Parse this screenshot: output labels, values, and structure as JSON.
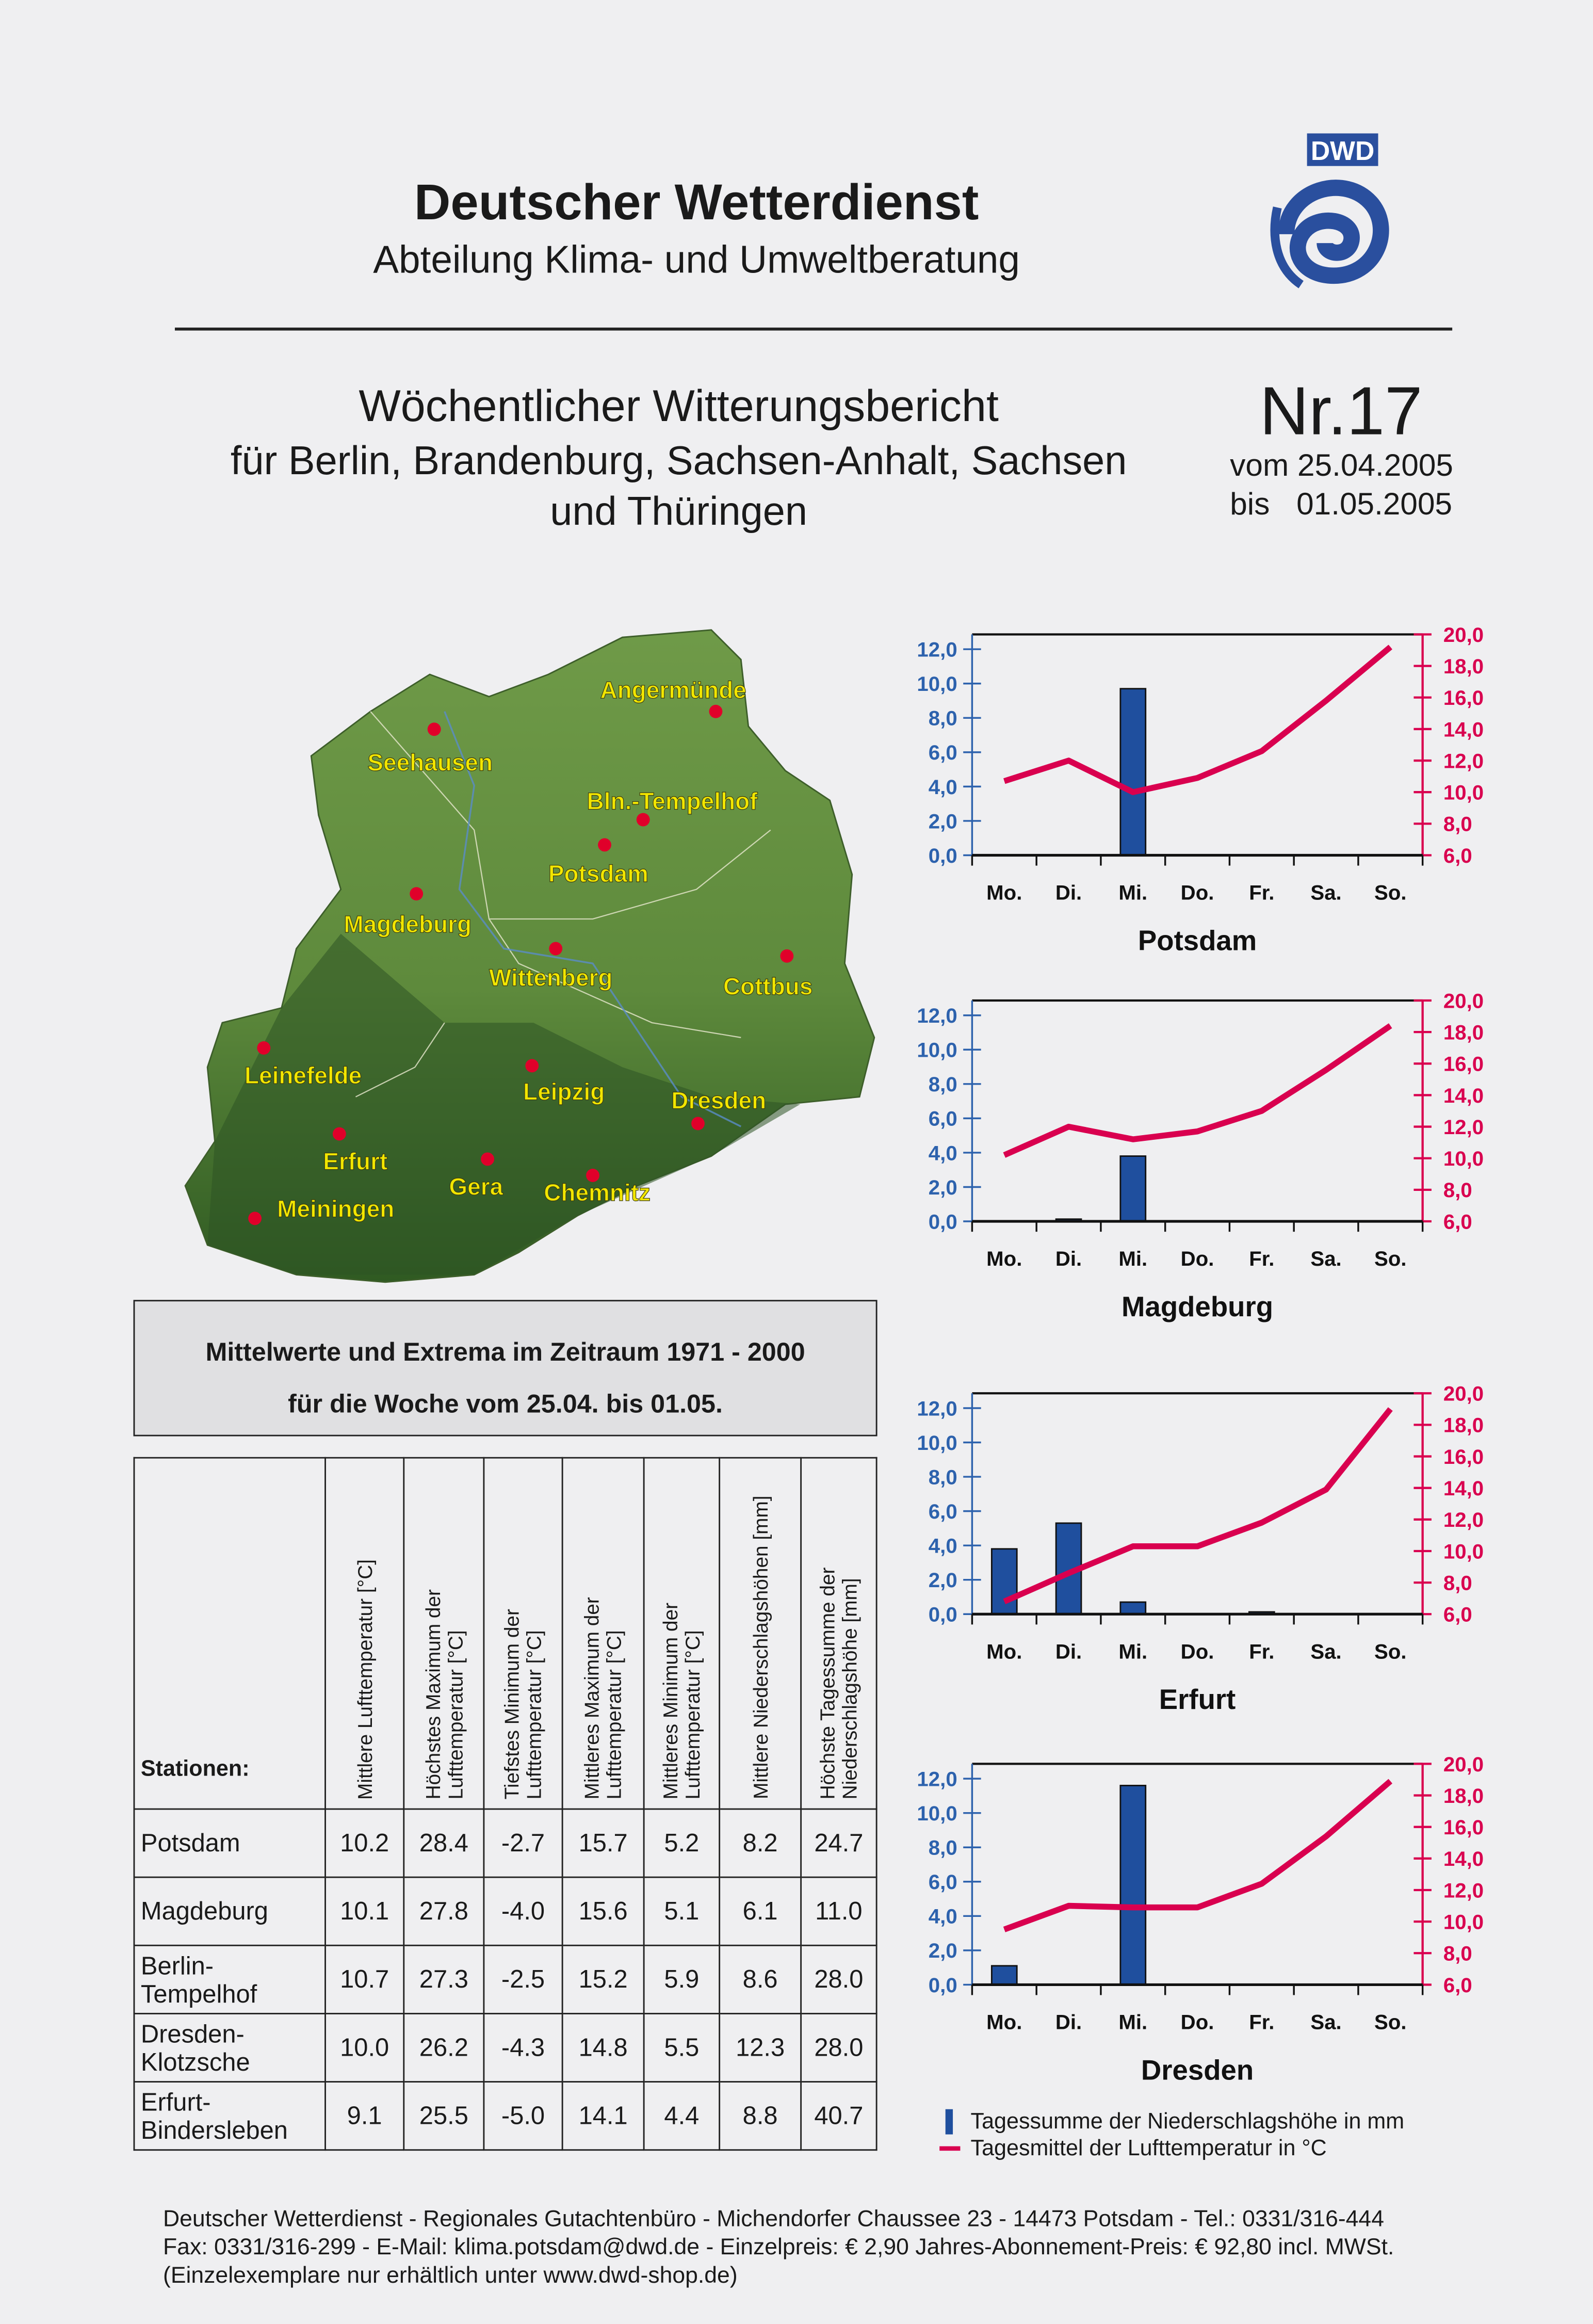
{
  "header": {
    "org": "Deutscher Wetterdienst",
    "department": "Abteilung Klima- und Umweltberatung",
    "logo_text": "DWD"
  },
  "report": {
    "title": "Wöchentlicher Witterungsbericht",
    "region_line1": "für Berlin, Brandenburg, Sachsen-Anhalt, Sachsen",
    "region_line2": "und Thüringen",
    "number": "Nr.17",
    "from_label": "vom",
    "from_date": "25.04.2005",
    "to_label": "bis",
    "to_date": "01.05.2005"
  },
  "map": {
    "cities": [
      "Angermünde",
      "Seehausen",
      "Bln.-Tempelhof",
      "Potsdam",
      "Magdeburg",
      "Wittenberg",
      "Cottbus",
      "Leinefelde",
      "Leipzig",
      "Dresden",
      "Erfurt",
      "Gera",
      "Chemnitz",
      "Meiningen"
    ]
  },
  "climate_box": {
    "line1": "Mittelwerte und Extrema im Zeitraum 1971 - 2000",
    "line2": "für die Woche vom 25.04. bis 01.05."
  },
  "table": {
    "station_header": "Stationen:",
    "columns": [
      "Mittlere Lufttemperatur [°C]",
      "Höchstes Maximum der Lufttemperatur [°C]",
      "Tiefstes Minimum der Lufttemperatur [°C]",
      "Mittleres Maximum der Lufttemperatur [°C]",
      "Mittleres Minimum der Lufttemperatur [°C]",
      "Mittlere Niederschlagshöhen [mm]",
      "Höchste Tagessumme der Niederschlagshöhe [mm]"
    ],
    "rows": [
      {
        "station": "Potsdam",
        "values": [
          "10.2",
          "28.4",
          "-2.7",
          "15.7",
          "5.2",
          "8.2",
          "24.7"
        ]
      },
      {
        "station": "Magdeburg",
        "values": [
          "10.1",
          "27.8",
          "-4.0",
          "15.6",
          "5.1",
          "6.1",
          "11.0"
        ]
      },
      {
        "station": "Berlin-Tempelhof",
        "values": [
          "10.7",
          "27.3",
          "-2.5",
          "15.2",
          "5.9",
          "8.6",
          "28.0"
        ]
      },
      {
        "station": "Dresden-Klotzsche",
        "values": [
          "10.0",
          "26.2",
          "-4.3",
          "14.8",
          "5.5",
          "12.3",
          "28.0"
        ]
      },
      {
        "station": "Erfurt-Bindersleben",
        "values": [
          "9.1",
          "25.5",
          "-5.0",
          "14.1",
          "4.4",
          "8.8",
          "40.7"
        ]
      }
    ]
  },
  "chart_data": [
    {
      "type": "bar+line",
      "title": "Potsdam",
      "categories": [
        "Mo.",
        "Di.",
        "Mi.",
        "Do.",
        "Fr.",
        "Sa.",
        "So."
      ],
      "series": [
        {
          "name": "Tagessumme der Niederschlagshöhe in mm",
          "axis": "left",
          "values": [
            0,
            0,
            9.7,
            0,
            0,
            0,
            0
          ]
        },
        {
          "name": "Tagesmittel der Lufttemperatur in °C",
          "axis": "right",
          "values": [
            10.7,
            12.0,
            10.0,
            10.9,
            12.6,
            15.8,
            19.2
          ]
        }
      ],
      "yticks_left": [
        "0,0",
        "2,0",
        "4,0",
        "6,0",
        "8,0",
        "10,0",
        "12,0"
      ],
      "yticks_right": [
        "6,0",
        "8,0",
        "10,0",
        "12,0",
        "14,0",
        "16,0",
        "18,0",
        "20,0"
      ],
      "ylim_left": [
        0,
        12.9
      ],
      "ylim_right": [
        6,
        20
      ]
    },
    {
      "type": "bar+line",
      "title": "Magdeburg",
      "categories": [
        "Mo.",
        "Di.",
        "Mi.",
        "Do.",
        "Fr.",
        "Sa.",
        "So."
      ],
      "series": [
        {
          "name": "Tagessumme der Niederschlagshöhe in mm",
          "axis": "left",
          "values": [
            0,
            0.1,
            3.8,
            0,
            0,
            0,
            0
          ]
        },
        {
          "name": "Tagesmittel der Lufttemperatur in °C",
          "axis": "right",
          "values": [
            10.2,
            12.0,
            11.2,
            11.7,
            13.0,
            15.6,
            18.4
          ]
        }
      ],
      "yticks_left": [
        "0,0",
        "2,0",
        "4,0",
        "6,0",
        "8,0",
        "10,0",
        "12,0"
      ],
      "yticks_right": [
        "6,0",
        "8,0",
        "10,0",
        "12,0",
        "14,0",
        "16,0",
        "18,0",
        "20,0"
      ],
      "ylim_left": [
        0,
        12.9
      ],
      "ylim_right": [
        6,
        20
      ]
    },
    {
      "type": "bar+line",
      "title": "Erfurt",
      "categories": [
        "Mo.",
        "Di.",
        "Mi.",
        "Do.",
        "Fr.",
        "Sa.",
        "So."
      ],
      "series": [
        {
          "name": "Tagessumme der Niederschlagshöhe in mm",
          "axis": "left",
          "values": [
            3.8,
            5.3,
            0.7,
            0,
            0.1,
            0,
            0
          ]
        },
        {
          "name": "Tagesmittel der Lufttemperatur in °C",
          "axis": "right",
          "values": [
            6.8,
            8.6,
            10.3,
            10.3,
            11.8,
            13.9,
            19.0
          ]
        }
      ],
      "yticks_left": [
        "0,0",
        "2,0",
        "4,0",
        "6,0",
        "8,0",
        "10,0",
        "12,0"
      ],
      "yticks_right": [
        "6,0",
        "8,0",
        "10,0",
        "12,0",
        "14,0",
        "16,0",
        "18,0",
        "20,0"
      ],
      "ylim_left": [
        0,
        12.9
      ],
      "ylim_right": [
        6,
        20
      ]
    },
    {
      "type": "bar+line",
      "title": "Dresden",
      "categories": [
        "Mo.",
        "Di.",
        "Mi.",
        "Do.",
        "Fr.",
        "Sa.",
        "So."
      ],
      "series": [
        {
          "name": "Tagessumme der Niederschlagshöhe in mm",
          "axis": "left",
          "values": [
            1.1,
            0,
            11.6,
            0,
            0,
            0,
            0
          ]
        },
        {
          "name": "Tagesmittel der Lufttemperatur in °C",
          "axis": "right",
          "values": [
            9.5,
            11.0,
            10.9,
            10.9,
            12.4,
            15.4,
            18.9
          ]
        }
      ],
      "yticks_left": [
        "0,0",
        "2,0",
        "4,0",
        "6,0",
        "8,0",
        "10,0",
        "12,0"
      ],
      "yticks_right": [
        "6,0",
        "8,0",
        "10,0",
        "12,0",
        "14,0",
        "16,0",
        "18,0",
        "20,0"
      ],
      "ylim_left": [
        0,
        12.9
      ],
      "ylim_right": [
        6,
        20
      ]
    }
  ],
  "legend": {
    "precip": "Tagessumme der Niederschlagshöhe in mm",
    "temp": "Tagesmittel der Lufttemperatur in °C"
  },
  "colors": {
    "precip": "#1f4f9e",
    "temp": "#d9004f",
    "left_axis": "#2d62ad",
    "map_label": "#f2e600",
    "city_dot": "#e0002a"
  },
  "footer": {
    "line1": "Deutscher Wetterdienst - Regionales Gutachtenbüro - Michendorfer Chaussee 23 - 14473 Potsdam  -  Tel.: 0331/316-444",
    "line2": "Fax: 0331/316-299  -  E-Mail: klima.potsdam@dwd.de  -   Einzelpreis: € 2,90 Jahres-Abonnement-Preis: € 92,80 incl. MWSt.",
    "line3": "(Einzelexemplare nur erhältlich unter www.dwd-shop.de)"
  }
}
